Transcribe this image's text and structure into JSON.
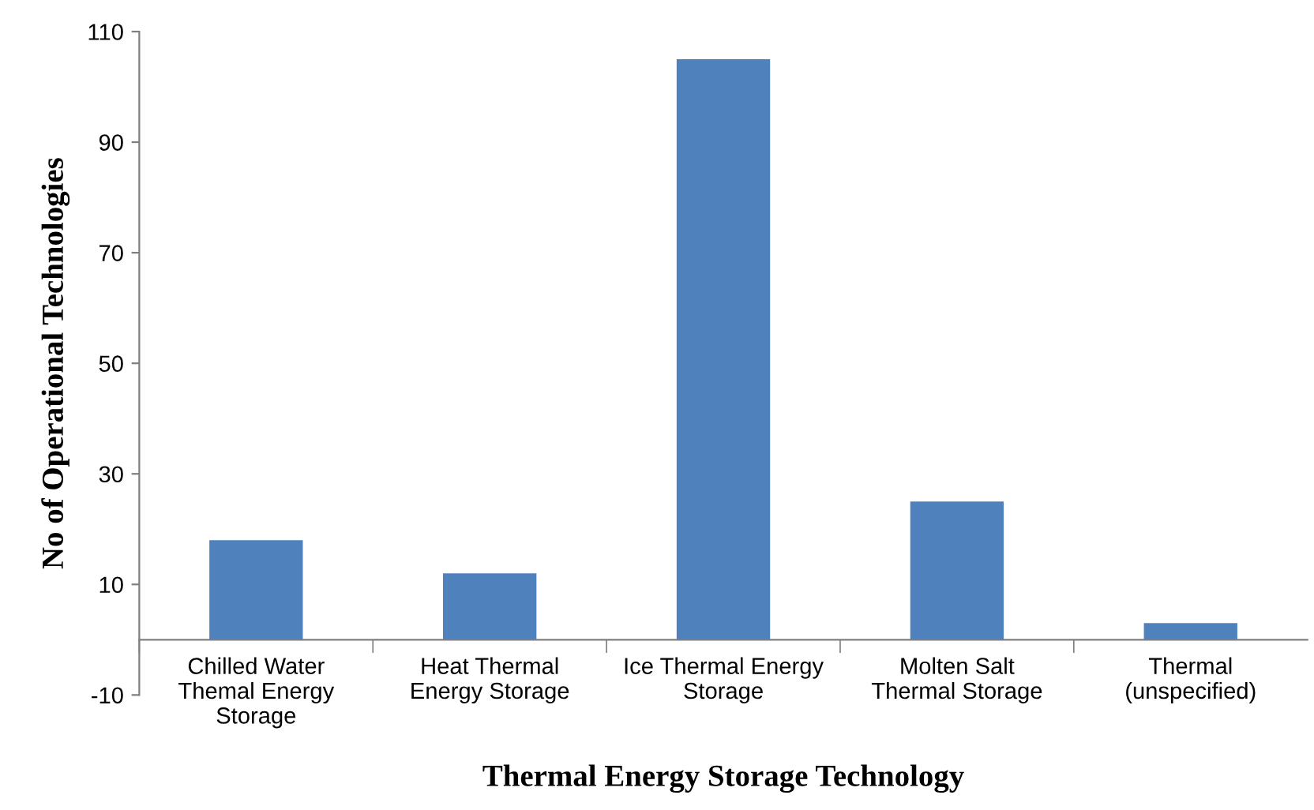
{
  "chart_data": {
    "type": "bar",
    "xlabel": "Thermal Energy Storage Technology",
    "ylabel": "No of Operational Technologies",
    "categories": [
      "Chilled Water\nThemal Energy\nStorage",
      "Heat Thermal\nEnergy Storage",
      "Ice Thermal Energy\nStorage",
      "Molten Salt\nThermal Storage",
      "Thermal\n(unspecified)"
    ],
    "values": [
      18,
      12,
      105,
      25,
      3
    ],
    "color": "#4f81bd",
    "ylim": [
      -10,
      110
    ],
    "yticks": [
      -10,
      10,
      30,
      50,
      70,
      90,
      110
    ],
    "grid": false,
    "legend": false
  }
}
